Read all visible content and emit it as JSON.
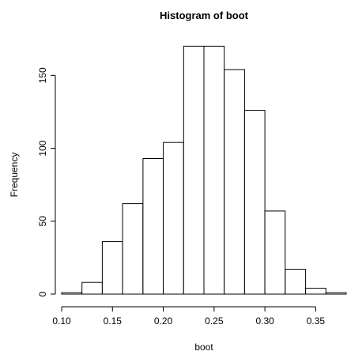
{
  "chart_data": {
    "type": "bar",
    "title": "Histogram of boot",
    "xlabel": "boot",
    "ylabel": "Frequency",
    "bin_edges": [
      0.1,
      0.12,
      0.14,
      0.16,
      0.18,
      0.2,
      0.22,
      0.24,
      0.26,
      0.28,
      0.3,
      0.32,
      0.34,
      0.36,
      0.38
    ],
    "values": [
      1,
      8,
      36,
      62,
      93,
      104,
      170,
      170,
      154,
      126,
      57,
      17,
      4,
      1
    ],
    "xlim": [
      0.1,
      0.38
    ],
    "ylim": [
      0,
      180
    ],
    "x_ticks": [
      "0.10",
      "0.15",
      "0.20",
      "0.25",
      "0.30",
      "0.35"
    ],
    "x_tick_values": [
      0.1,
      0.15,
      0.2,
      0.25,
      0.3,
      0.35
    ],
    "y_ticks": [
      "0",
      "50",
      "100",
      "150"
    ],
    "y_tick_values": [
      0,
      50,
      100,
      150
    ],
    "grid": false,
    "legend": "none"
  }
}
